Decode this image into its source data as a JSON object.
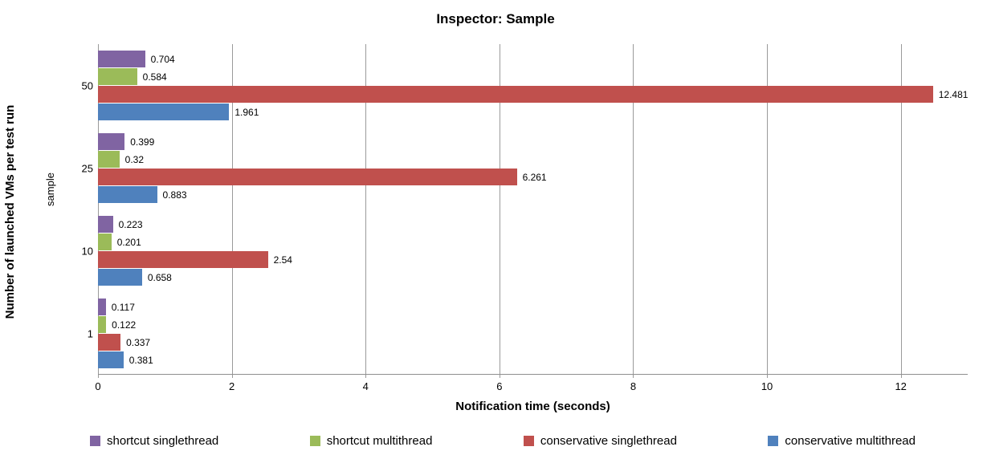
{
  "title": "Inspector: Sample",
  "axes": {
    "x_label": "Notification time (seconds)",
    "y_label": "Number of launched VMs per test run",
    "y_sublabel": "sample"
  },
  "chart_data": {
    "type": "bar",
    "orientation": "horizontal",
    "title": "Inspector: Sample",
    "xlabel": "Notification time (seconds)",
    "ylabel": "Number of launched VMs per test run",
    "ylabel_secondary": "sample",
    "categories": [
      "50",
      "25",
      "10",
      "1"
    ],
    "series": [
      {
        "name": "shortcut singlethread",
        "color": "#8064A2",
        "values": [
          0.704,
          0.399,
          0.223,
          0.117
        ],
        "labels": [
          "0.704",
          "0.399",
          "0.223",
          "0.117"
        ]
      },
      {
        "name": "shortcut multithread",
        "color": "#9BBB59",
        "values": [
          0.584,
          0.32,
          0.201,
          0.122
        ],
        "labels": [
          "0.584",
          "0.32",
          "0.201",
          "0.122"
        ]
      },
      {
        "name": "conservative singlethread",
        "color": "#C0504D",
        "values": [
          12.481,
          6.261,
          2.54,
          0.337
        ],
        "labels": [
          "12.481",
          "6.261",
          "2.54",
          "0.337"
        ]
      },
      {
        "name": "conservative multithread",
        "color": "#4F81BD",
        "values": [
          1.961,
          0.883,
          0.658,
          0.381
        ],
        "labels": [
          "1.961",
          "0.883",
          "0.658",
          "0.381"
        ]
      }
    ],
    "xlim": [
      0,
      13
    ],
    "x_ticks": [
      "0",
      "2",
      "4",
      "6",
      "8",
      "10",
      "12"
    ],
    "x_tick_values": [
      0,
      2,
      4,
      6,
      8,
      10,
      12
    ],
    "grid": true,
    "legend_position": "bottom",
    "colors": {
      "gridline": "#9a9a9a",
      "axis": "#8f8f8f",
      "text": "#000000",
      "background": "#ffffff"
    }
  }
}
